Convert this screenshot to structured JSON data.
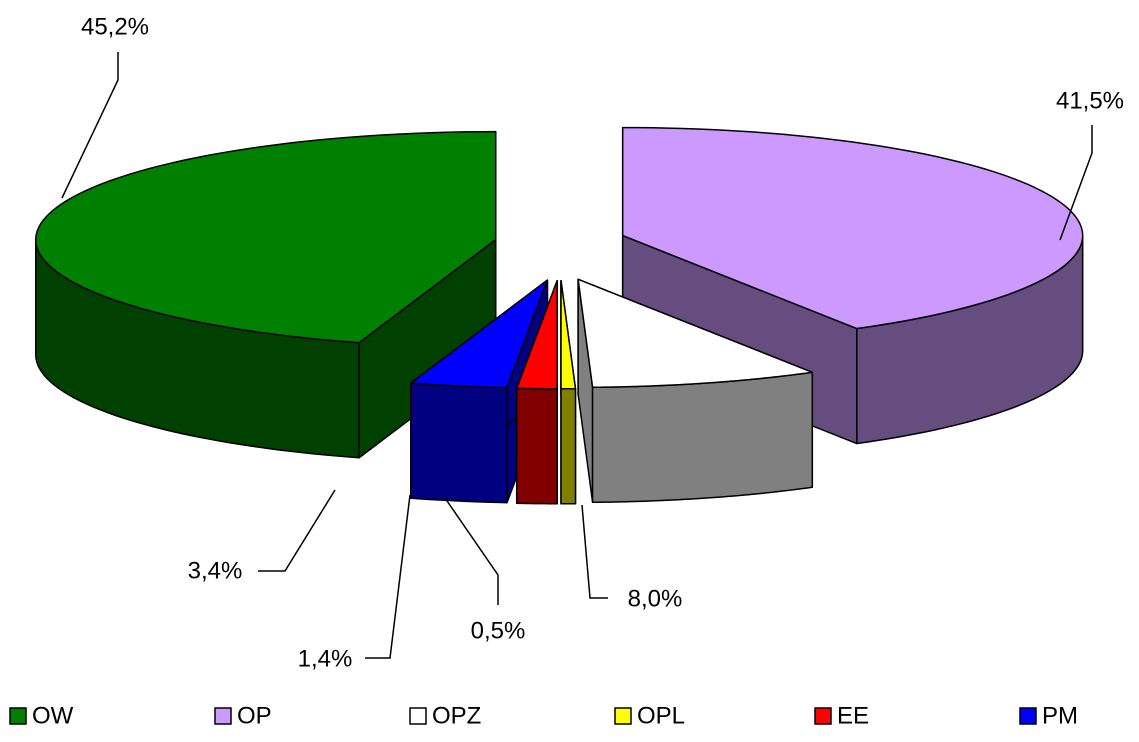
{
  "chart_data": {
    "type": "pie",
    "categories": [
      "OW",
      "OP",
      "OPZ",
      "OPL",
      "EE",
      "PM"
    ],
    "values": [
      45.2,
      41.5,
      8.0,
      0.5,
      1.4,
      3.4
    ],
    "value_labels": [
      "45,2%",
      "41,5%",
      "8,0%",
      "0,5%",
      "1,4%",
      "3,4%"
    ],
    "colors": [
      "#008000",
      "#cc99ff",
      "#ffffff",
      "#ffff00",
      "#ff0000",
      "#0000ff"
    ],
    "legend": "bottom"
  }
}
